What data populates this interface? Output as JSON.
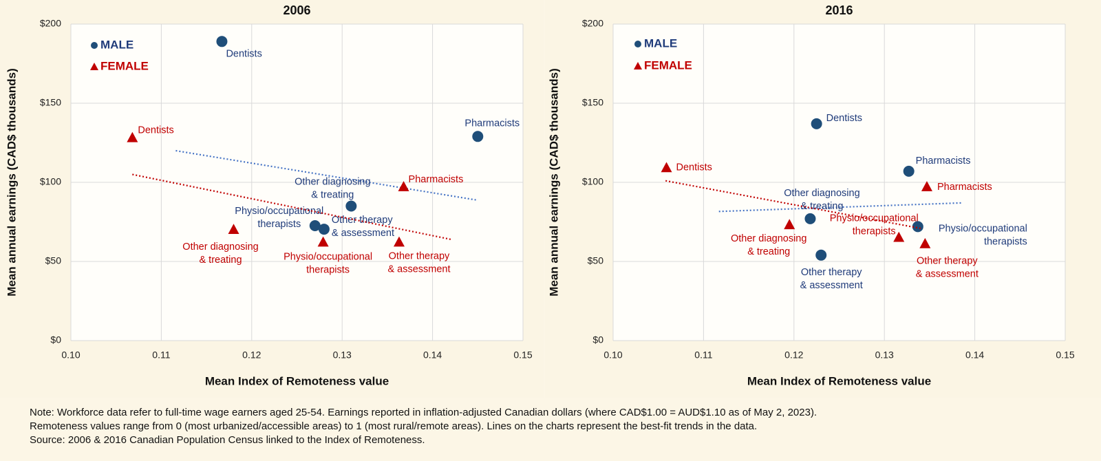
{
  "chart_data": [
    {
      "type": "scatter",
      "title": "2006",
      "xlabel": "Mean Index of Remoteness value",
      "ylabel": "Mean annual earnings (CAD$ thousands)",
      "xlim": [
        0.1,
        0.15
      ],
      "xticks": [
        {
          "value": 0.1,
          "label": "0.10"
        },
        0.11,
        0.12,
        0.13,
        0.14,
        0.15
      ],
      "ylim": [
        0,
        200
      ],
      "yticks": [
        {
          "value": 0,
          "label": "$0"
        },
        {
          "value": 50,
          "label": "$50"
        },
        {
          "value": 100,
          "label": "$100"
        },
        {
          "value": 150,
          "label": "$150"
        },
        {
          "value": 200,
          "label": "$200"
        }
      ],
      "grid": true,
      "series": [
        {
          "name": "MALE",
          "color": "#1f4e79",
          "marker": "circle",
          "x": [
            0.1167,
            0.145,
            0.131,
            0.127,
            0.128
          ],
          "values": [
            189,
            129,
            85,
            72.6,
            70.4
          ],
          "labels": [
            [
              "Dentists"
            ],
            [
              "Pharmacists"
            ],
            [
              "Other diagnosing",
              "& treating"
            ],
            [
              "Physio/occupational",
              "therapists"
            ],
            [
              "Other therapy",
              "& assessment"
            ]
          ],
          "label_color": "#1f3b7a",
          "trend": {
            "color": "#4472c4",
            "x": [
              0.1116,
              0.145
            ],
            "values": [
              120,
              88.7
            ]
          }
        },
        {
          "name": "FEMALE",
          "color": "#c00000",
          "marker": "triangle",
          "x": [
            0.1068,
            0.1368,
            0.118,
            0.1279,
            0.1363
          ],
          "values": [
            128,
            97,
            70,
            62,
            62
          ],
          "labels": [
            [
              "Dentists"
            ],
            [
              "Pharmacists"
            ],
            [
              "Other diagnosing",
              "& treating"
            ],
            [
              "Physio/occupational",
              "therapists"
            ],
            [
              "Other therapy",
              "& assessment"
            ]
          ],
          "label_color": "#c00000",
          "trend": {
            "color": "#c00000",
            "x": [
              0.1068,
              0.142
            ],
            "values": [
              105,
              64
            ]
          }
        }
      ]
    },
    {
      "type": "scatter",
      "title": "2016",
      "xlabel": "Mean Index of Remoteness value",
      "ylabel": "Mean annual earnings (CAD$ thousands)",
      "xlim": [
        0.1,
        0.15
      ],
      "xticks": [
        {
          "value": 0.1,
          "label": "0.10"
        },
        0.11,
        0.12,
        0.13,
        0.14,
        0.15
      ],
      "ylim": [
        0,
        200
      ],
      "yticks": [
        {
          "value": 0,
          "label": "$0"
        },
        {
          "value": 50,
          "label": "$50"
        },
        {
          "value": 100,
          "label": "$100"
        },
        {
          "value": 150,
          "label": "$150"
        },
        {
          "value": 200,
          "label": "$200"
        }
      ],
      "grid": true,
      "series": [
        {
          "name": "MALE",
          "color": "#1f4e79",
          "marker": "circle",
          "x": [
            0.1225,
            0.1327,
            0.1218,
            0.1337,
            0.123
          ],
          "values": [
            137,
            107,
            77,
            72,
            54
          ],
          "labels": [
            [
              "Dentists"
            ],
            [
              "Pharmacists"
            ],
            [
              "Other diagnosing",
              "& treating"
            ],
            [
              "Physio/occupational",
              "therapists"
            ],
            [
              "Other therapy",
              "& assessment"
            ]
          ],
          "label_color": "#1f3b7a",
          "trend": {
            "color": "#4472c4",
            "x": [
              0.1117,
              0.1385
            ],
            "values": [
              81.6,
              87
            ]
          }
        },
        {
          "name": "FEMALE",
          "color": "#c00000",
          "marker": "triangle",
          "x": [
            0.1059,
            0.1347,
            0.1195,
            0.1316,
            0.1345
          ],
          "values": [
            109,
            97,
            73,
            65,
            61
          ],
          "labels": [
            [
              "Dentists"
            ],
            [
              "Pharmacists"
            ],
            [
              "Other diagnosing",
              "& treating"
            ],
            [
              "Physio/occupational",
              "therapists"
            ],
            [
              "Other therapy",
              "& assessment"
            ]
          ],
          "label_color": "#c00000",
          "trend": {
            "color": "#c00000",
            "x": [
              0.1058,
              0.1342
            ],
            "values": [
              101,
              70.7
            ]
          }
        }
      ]
    }
  ],
  "note": [
    "Note: Workforce data refer to full-time wage earners aged 25-54. Earnings reported in inflation-adjusted Canadian dollars (where CAD$1.00 = AUD$1.10 as of May 2, 2023).",
    "Remoteness values range from 0 (most urbanized/accessible areas) to 1 (most rural/remote areas). Lines on the charts represent the best-fit trends in the data.",
    "Source: 2006 & 2016 Canadian Population Census linked to the Index of Remoteness."
  ]
}
